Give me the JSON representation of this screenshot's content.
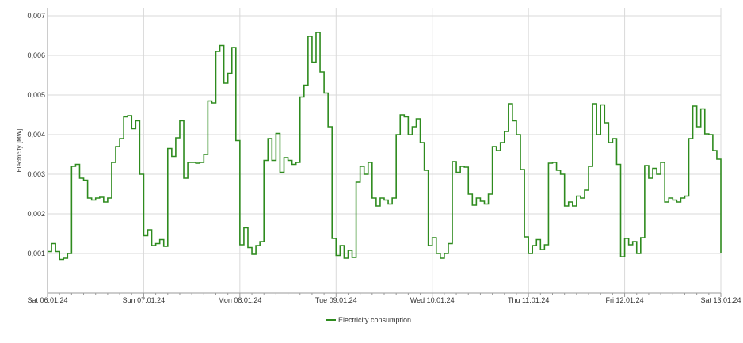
{
  "colors": {
    "series": "#2e8b1e",
    "grid": "#d9d9d9",
    "axis": "#9a9a9a",
    "background": "#ffffff"
  },
  "chart_data": {
    "type": "line",
    "step": true,
    "title": "",
    "xlabel": "",
    "ylabel": "Electricity [MW]",
    "ylim": [
      0,
      0.0072
    ],
    "y_ticks": [
      "0,001",
      "0,002",
      "0,003",
      "0,004",
      "0,005",
      "0,006",
      "0,007"
    ],
    "y_tick_values": [
      0.001,
      0.002,
      0.003,
      0.004,
      0.005,
      0.006,
      0.007
    ],
    "x_ticks": [
      "Sat 06.01.24",
      "Sun 07.01.24",
      "Mon 08.01.24",
      "Tue 09.01.24",
      "Wed 10.01.24",
      "Thu 11.01.24",
      "Fri 12.01.24",
      "Sat 13.01.24"
    ],
    "x_range_hours": [
      0,
      168
    ],
    "grid": true,
    "legend_position": "bottom-center",
    "series": [
      {
        "name": "Electricity consumption",
        "x_unit": "hours since Sat 06.01.24 00:00",
        "points": [
          [
            0,
            0.00105
          ],
          [
            1,
            0.00125
          ],
          [
            2,
            0.00105
          ],
          [
            3,
            0.00085
          ],
          [
            4,
            0.00088
          ],
          [
            5,
            0.001
          ],
          [
            6,
            0.0032
          ],
          [
            7,
            0.00325
          ],
          [
            8,
            0.0029
          ],
          [
            9,
            0.00285
          ],
          [
            10,
            0.0024
          ],
          [
            11,
            0.00235
          ],
          [
            12,
            0.0024
          ],
          [
            13,
            0.00242
          ],
          [
            14,
            0.0023
          ],
          [
            15,
            0.0024
          ],
          [
            16,
            0.0033
          ],
          [
            17,
            0.0037
          ],
          [
            18,
            0.0039
          ],
          [
            19,
            0.00445
          ],
          [
            20,
            0.00448
          ],
          [
            21,
            0.00415
          ],
          [
            22,
            0.00435
          ],
          [
            23,
            0.003
          ],
          [
            24,
            0.00145
          ],
          [
            25,
            0.0016
          ],
          [
            26,
            0.0012
          ],
          [
            27,
            0.00125
          ],
          [
            28,
            0.00135
          ],
          [
            29,
            0.00118
          ],
          [
            30,
            0.00365
          ],
          [
            31,
            0.00345
          ],
          [
            32,
            0.00392
          ],
          [
            33,
            0.00435
          ],
          [
            34,
            0.0029
          ],
          [
            35,
            0.0033
          ],
          [
            36,
            0.0033
          ],
          [
            37,
            0.00328
          ],
          [
            38,
            0.0033
          ],
          [
            39,
            0.0035
          ],
          [
            40,
            0.00485
          ],
          [
            41,
            0.0048
          ],
          [
            42,
            0.0061
          ],
          [
            43,
            0.00625
          ],
          [
            44,
            0.0053
          ],
          [
            45,
            0.00555
          ],
          [
            46,
            0.0062
          ],
          [
            47,
            0.00385
          ],
          [
            48,
            0.00122
          ],
          [
            49,
            0.00165
          ],
          [
            50,
            0.00115
          ],
          [
            51,
            0.00098
          ],
          [
            52,
            0.0012
          ],
          [
            53,
            0.0013
          ],
          [
            54,
            0.00335
          ],
          [
            55,
            0.0039
          ],
          [
            56,
            0.00335
          ],
          [
            57,
            0.00403
          ],
          [
            58,
            0.00305
          ],
          [
            59,
            0.00342
          ],
          [
            60,
            0.00335
          ],
          [
            61,
            0.00325
          ],
          [
            62,
            0.0033
          ],
          [
            63,
            0.00495
          ],
          [
            64,
            0.00525
          ],
          [
            65,
            0.00648
          ],
          [
            66,
            0.00583
          ],
          [
            67,
            0.00658
          ],
          [
            68,
            0.00558
          ],
          [
            69,
            0.00505
          ],
          [
            70,
            0.0042
          ],
          [
            71,
            0.00138
          ],
          [
            72,
            0.00095
          ],
          [
            73,
            0.0012
          ],
          [
            74,
            0.00088
          ],
          [
            75,
            0.00108
          ],
          [
            76,
            0.0009
          ],
          [
            77,
            0.0028
          ],
          [
            78,
            0.0032
          ],
          [
            79,
            0.003
          ],
          [
            80,
            0.0033
          ],
          [
            81,
            0.0024
          ],
          [
            82,
            0.0022
          ],
          [
            83,
            0.0024
          ],
          [
            84,
            0.00235
          ],
          [
            85,
            0.00225
          ],
          [
            86,
            0.0024
          ],
          [
            87,
            0.004
          ],
          [
            88,
            0.0045
          ],
          [
            89,
            0.00445
          ],
          [
            90,
            0.004
          ],
          [
            91,
            0.0042
          ],
          [
            92,
            0.0044
          ],
          [
            93,
            0.0038
          ],
          [
            94,
            0.0031
          ],
          [
            95,
            0.0012
          ],
          [
            96,
            0.0014
          ],
          [
            97,
            0.001
          ],
          [
            98,
            0.00088
          ],
          [
            99,
            0.001
          ],
          [
            100,
            0.00125
          ],
          [
            101,
            0.00332
          ],
          [
            102,
            0.00305
          ],
          [
            103,
            0.0032
          ],
          [
            104,
            0.00318
          ],
          [
            105,
            0.0025
          ],
          [
            106,
            0.00222
          ],
          [
            107,
            0.0024
          ],
          [
            108,
            0.00232
          ],
          [
            109,
            0.00225
          ],
          [
            110,
            0.0025
          ],
          [
            111,
            0.0037
          ],
          [
            112,
            0.0036
          ],
          [
            113,
            0.0038
          ],
          [
            114,
            0.00408
          ],
          [
            115,
            0.00478
          ],
          [
            116,
            0.00435
          ],
          [
            117,
            0.004
          ],
          [
            118,
            0.00312
          ],
          [
            119,
            0.00142
          ],
          [
            120,
            0.001
          ],
          [
            121,
            0.0012
          ],
          [
            122,
            0.00135
          ],
          [
            123,
            0.0011
          ],
          [
            124,
            0.00122
          ],
          [
            125,
            0.00328
          ],
          [
            126,
            0.0033
          ],
          [
            127,
            0.0031
          ],
          [
            128,
            0.003
          ],
          [
            129,
            0.0022
          ],
          [
            130,
            0.0023
          ],
          [
            131,
            0.0022
          ],
          [
            132,
            0.00245
          ],
          [
            133,
            0.0024
          ],
          [
            134,
            0.0026
          ],
          [
            135,
            0.0032
          ],
          [
            136,
            0.00478
          ],
          [
            137,
            0.004
          ],
          [
            138,
            0.00475
          ],
          [
            139,
            0.0043
          ],
          [
            140,
            0.0038
          ],
          [
            141,
            0.0039
          ],
          [
            142,
            0.00325
          ],
          [
            143,
            0.00092
          ],
          [
            144,
            0.00138
          ],
          [
            145,
            0.00122
          ],
          [
            146,
            0.0013
          ],
          [
            147,
            0.001
          ],
          [
            148,
            0.0014
          ],
          [
            149,
            0.00322
          ],
          [
            150,
            0.0029
          ],
          [
            151,
            0.00315
          ],
          [
            152,
            0.003
          ],
          [
            153,
            0.0033
          ],
          [
            154,
            0.0023
          ],
          [
            155,
            0.0024
          ],
          [
            156,
            0.00235
          ],
          [
            157,
            0.0023
          ],
          [
            158,
            0.0024
          ],
          [
            159,
            0.00245
          ],
          [
            160,
            0.0039
          ],
          [
            161,
            0.00472
          ],
          [
            162,
            0.0042
          ],
          [
            163,
            0.00465
          ],
          [
            164,
            0.00402
          ],
          [
            165,
            0.004
          ],
          [
            166,
            0.0036
          ],
          [
            167,
            0.00338
          ],
          [
            168,
            0.001
          ]
        ]
      }
    ]
  }
}
